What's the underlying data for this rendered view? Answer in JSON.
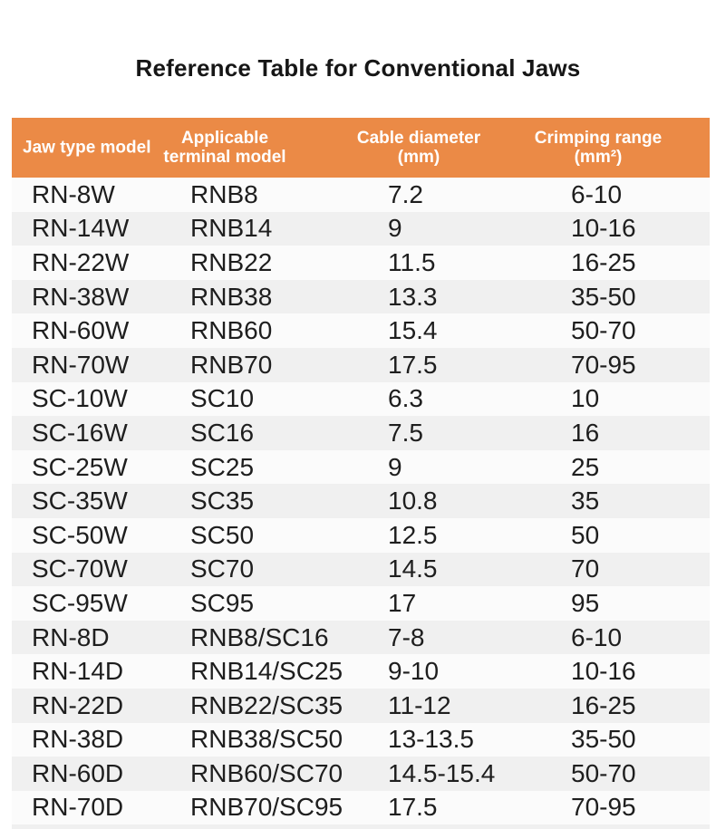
{
  "title": "Reference Table for Conventional Jaws",
  "table": {
    "columns": [
      {
        "line1": "Jaw type model",
        "line2": ""
      },
      {
        "line1": "Applicable",
        "line2": "terminal model"
      },
      {
        "line1": "Cable diameter",
        "line2": "(mm)"
      },
      {
        "line1": "Crimping range",
        "line2": "(mm²)"
      }
    ],
    "rows": [
      [
        "RN-8W",
        "RNB8",
        "7.2",
        "6-10"
      ],
      [
        "RN-14W",
        "RNB14",
        "9",
        "10-16"
      ],
      [
        "RN-22W",
        "RNB22",
        "11.5",
        "16-25"
      ],
      [
        "RN-38W",
        "RNB38",
        "13.3",
        "35-50"
      ],
      [
        "RN-60W",
        "RNB60",
        "15.4",
        "50-70"
      ],
      [
        "RN-70W",
        "RNB70",
        "17.5",
        "70-95"
      ],
      [
        "SC-10W",
        "SC10",
        "6.3",
        "10"
      ],
      [
        "SC-16W",
        "SC16",
        "7.5",
        "16"
      ],
      [
        "SC-25W",
        "SC25",
        "9",
        "25"
      ],
      [
        "SC-35W",
        "SC35",
        "10.8",
        "35"
      ],
      [
        "SC-50W",
        "SC50",
        "12.5",
        "50"
      ],
      [
        "SC-70W",
        "SC70",
        "14.5",
        "70"
      ],
      [
        "SC-95W",
        "SC95",
        "17",
        "95"
      ],
      [
        "RN-8D",
        "RNB8/SC16",
        "7-8",
        "6-10"
      ],
      [
        "RN-14D",
        "RNB14/SC25",
        "9-10",
        "10-16"
      ],
      [
        "RN-22D",
        "RNB22/SC35",
        "11-12",
        "16-25"
      ],
      [
        "RN-38D",
        "RNB38/SC50",
        "13-13.5",
        "35-50"
      ],
      [
        "RN-60D",
        "RNB60/SC70",
        "14.5-15.4",
        "50-70"
      ],
      [
        "RN-70D",
        "RNB70/SC95",
        "17.5",
        "70-95"
      ]
    ]
  },
  "colors": {
    "header_bg": "#eb8a46",
    "header_text": "#ffffff",
    "row_odd": "#fbfbfb",
    "row_even": "#f0f0f0",
    "cell_text": "#1e1e1e",
    "title_text": "#161616"
  }
}
